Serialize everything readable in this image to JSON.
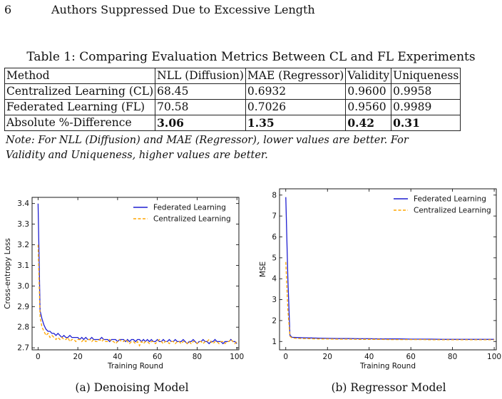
{
  "header": {
    "page_number": "6",
    "running_title": "Authors Suppressed Due to Excessive Length"
  },
  "table": {
    "caption": "Table 1: Comparing Evaluation Metrics Between CL and FL Experiments",
    "columns": [
      "Method",
      "NLL (Diffusion)",
      "MAE (Regressor)",
      "Validity",
      "Uniqueness"
    ],
    "rows": [
      [
        "Centralized Learning (CL)",
        "68.45",
        "0.6932",
        "0.9600",
        "0.9958"
      ],
      [
        "Federated Learning (FL)",
        "70.58",
        "0.7026",
        "0.9560",
        "0.9989"
      ],
      [
        "Absolute %-Difference",
        "3.06",
        "1.35",
        "0.42",
        "0.31"
      ]
    ],
    "note": "Note: For NLL (Diffusion) and MAE (Regressor), lower values are better. For Validity and Uniqueness, higher values are better."
  },
  "chart_data": [
    {
      "type": "line",
      "subcaption": "(a) Denoising Model",
      "xlabel": "Training Round",
      "ylabel": "Cross-entropy Loss",
      "xlim": [
        -3,
        101
      ],
      "ylim": [
        2.69,
        3.43
      ],
      "xticks": [
        0,
        20,
        40,
        60,
        80,
        100
      ],
      "yticks": [
        2.7,
        2.8,
        2.9,
        3.0,
        3.1,
        3.2,
        3.3,
        3.4
      ],
      "legend_position": "top-right",
      "grid": false,
      "series": [
        {
          "name": "Federated Learning",
          "color": "#1f1fd1",
          "style": "solid",
          "values": [
            3.4,
            2.88,
            2.84,
            2.81,
            2.79,
            2.78,
            2.78,
            2.77,
            2.77,
            2.76,
            2.77,
            2.76,
            2.75,
            2.76,
            2.75,
            2.75,
            2.76,
            2.75,
            2.75,
            2.75,
            2.75,
            2.74,
            2.75,
            2.74,
            2.75,
            2.74,
            2.74,
            2.75,
            2.74,
            2.74,
            2.74,
            2.74,
            2.75,
            2.74,
            2.74,
            2.74,
            2.73,
            2.74,
            2.74,
            2.74,
            2.73,
            2.74,
            2.74,
            2.74,
            2.73,
            2.74,
            2.73,
            2.74,
            2.74,
            2.73,
            2.74,
            2.74,
            2.73,
            2.74,
            2.73,
            2.74,
            2.73,
            2.74,
            2.73,
            2.73,
            2.74,
            2.73,
            2.73,
            2.74,
            2.73,
            2.73,
            2.74,
            2.73,
            2.73,
            2.74,
            2.73,
            2.73,
            2.73,
            2.74,
            2.73,
            2.72,
            2.73,
            2.73,
            2.74,
            2.73,
            2.72,
            2.73,
            2.73,
            2.74,
            2.73,
            2.73,
            2.72,
            2.73,
            2.73,
            2.74,
            2.73,
            2.73,
            2.73,
            2.72,
            2.73,
            2.73,
            2.73,
            2.74,
            2.73,
            2.73,
            2.72
          ]
        },
        {
          "name": "Centralized Learning",
          "color": "#ffa500",
          "style": "dashed",
          "values": [
            3.2,
            2.85,
            2.8,
            2.78,
            2.76,
            2.77,
            2.75,
            2.76,
            2.75,
            2.74,
            2.75,
            2.74,
            2.75,
            2.74,
            2.74,
            2.75,
            2.73,
            2.74,
            2.74,
            2.73,
            2.74,
            2.74,
            2.73,
            2.74,
            2.73,
            2.74,
            2.74,
            2.73,
            2.74,
            2.73,
            2.73,
            2.74,
            2.73,
            2.74,
            2.73,
            2.73,
            2.74,
            2.73,
            2.73,
            2.72,
            2.73,
            2.74,
            2.73,
            2.73,
            2.74,
            2.73,
            2.72,
            2.73,
            2.73,
            2.72,
            2.73,
            2.71,
            2.73,
            2.72,
            2.73,
            2.73,
            2.72,
            2.73,
            2.73,
            2.72,
            2.73,
            2.74,
            2.73,
            2.72,
            2.73,
            2.73,
            2.72,
            2.73,
            2.73,
            2.72,
            2.73,
            2.73,
            2.72,
            2.73,
            2.73,
            2.72,
            2.73,
            2.72,
            2.73,
            2.73,
            2.72,
            2.73,
            2.73,
            2.72,
            2.73,
            2.73,
            2.74,
            2.73,
            2.72,
            2.73,
            2.73,
            2.72,
            2.73,
            2.73,
            2.72,
            2.73,
            2.73,
            2.74,
            2.73,
            2.72,
            2.73
          ]
        }
      ]
    },
    {
      "type": "line",
      "subcaption": "(b) Regressor Model",
      "xlabel": "Training Round",
      "ylabel": "MSE",
      "xlim": [
        -3,
        101
      ],
      "ylim": [
        0.6,
        8.3
      ],
      "xticks": [
        0,
        20,
        40,
        60,
        80,
        100
      ],
      "yticks": [
        1,
        2,
        3,
        4,
        5,
        6,
        7,
        8
      ],
      "legend_position": "top-right",
      "grid": false,
      "series": [
        {
          "name": "Federated Learning",
          "color": "#1f1fd1",
          "style": "solid",
          "x": [
            0,
            1,
            2,
            3,
            5,
            8,
            12,
            16,
            20,
            25,
            30,
            35,
            40,
            45,
            50,
            55,
            60,
            65,
            70,
            75,
            80,
            85,
            90,
            95,
            100
          ],
          "values": [
            7.9,
            4.0,
            1.3,
            1.2,
            1.19,
            1.18,
            1.17,
            1.16,
            1.15,
            1.14,
            1.14,
            1.13,
            1.13,
            1.12,
            1.12,
            1.12,
            1.11,
            1.11,
            1.11,
            1.1,
            1.1,
            1.1,
            1.1,
            1.1,
            1.1
          ]
        },
        {
          "name": "Centralized Learning",
          "color": "#ffa500",
          "style": "dashed",
          "x": [
            0,
            1,
            2,
            3,
            5,
            8,
            12,
            16,
            20,
            25,
            30,
            35,
            40,
            45,
            50,
            55,
            60,
            65,
            70,
            75,
            80,
            85,
            90,
            95,
            100
          ],
          "values": [
            4.8,
            2.5,
            1.25,
            1.17,
            1.15,
            1.14,
            1.13,
            1.12,
            1.12,
            1.11,
            1.11,
            1.1,
            1.1,
            1.1,
            1.09,
            1.09,
            1.09,
            1.09,
            1.08,
            1.08,
            1.08,
            1.08,
            1.08,
            1.08,
            1.08
          ]
        }
      ]
    }
  ]
}
